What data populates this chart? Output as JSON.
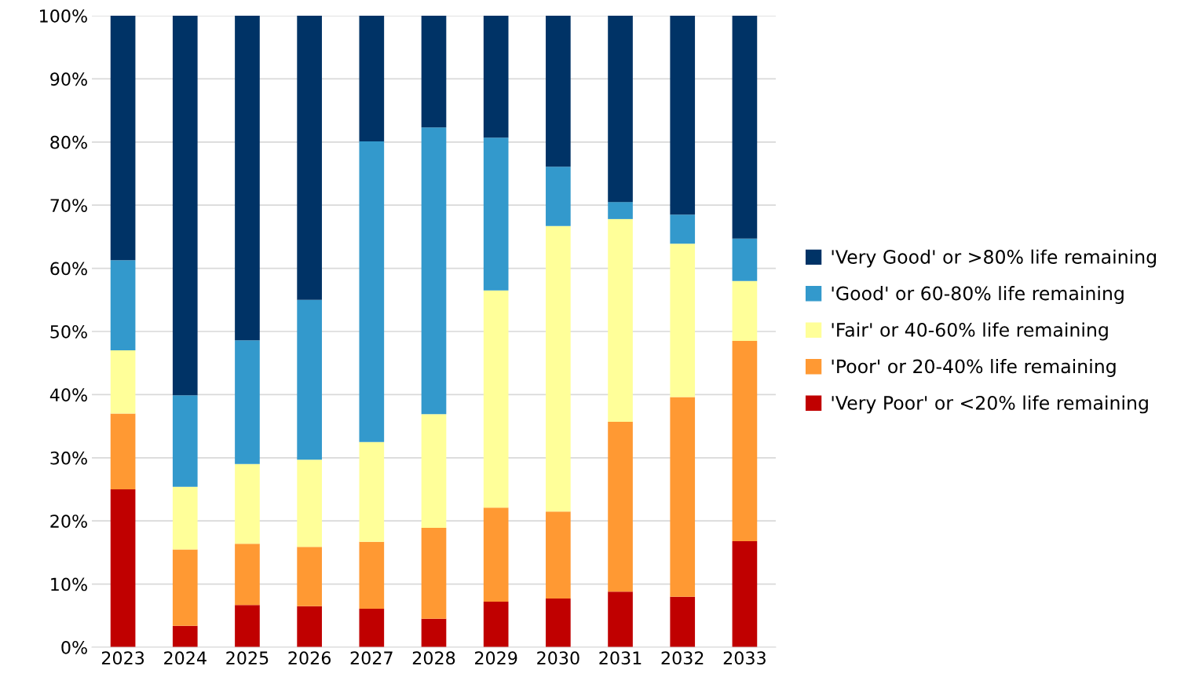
{
  "chart_data": {
    "type": "bar",
    "stacked": true,
    "categories": [
      "2023",
      "2024",
      "2025",
      "2026",
      "2027",
      "2028",
      "2029",
      "2030",
      "2031",
      "2032",
      "2033"
    ],
    "series": [
      {
        "name": "'Very Poor' or <20% life remaining",
        "color": "#c00000",
        "values": [
          25,
          3.4,
          6.7,
          6.5,
          6.1,
          4.5,
          7.2,
          7.7,
          8.8,
          8.0,
          16.8
        ]
      },
      {
        "name": "'Poor' or 20-40% life remaining",
        "color": "#ff9933",
        "values": [
          12,
          12.1,
          9.7,
          9.4,
          10.6,
          14.4,
          14.9,
          13.8,
          26.9,
          31.6,
          31.7
        ]
      },
      {
        "name": "'Fair' or 40-60% life remaining",
        "color": "#ffff99",
        "values": [
          10,
          9.9,
          12.6,
          13.8,
          15.8,
          18.0,
          34.4,
          45.2,
          32.1,
          24.3,
          9.5
        ]
      },
      {
        "name": "'Good' or 60-80% life remaining",
        "color": "#3399cc",
        "values": [
          14.3,
          14.5,
          19.6,
          25.3,
          47.6,
          45.4,
          24.2,
          9.4,
          2.7,
          4.6,
          6.7
        ]
      },
      {
        "name": "'Very Good' or >80% life remaining",
        "color": "#003366",
        "values": [
          38.7,
          60.1,
          51.4,
          45.0,
          19.9,
          17.7,
          19.3,
          23.9,
          29.5,
          31.5,
          35.3
        ]
      }
    ],
    "ylim": [
      0,
      100
    ],
    "yticks": [
      {
        "value": 0,
        "label": "0%"
      },
      {
        "value": 10,
        "label": "10%"
      },
      {
        "value": 20,
        "label": "20%"
      },
      {
        "value": 30,
        "label": "30%"
      },
      {
        "value": 40,
        "label": "40%"
      },
      {
        "value": 50,
        "label": "50%"
      },
      {
        "value": 60,
        "label": "60%"
      },
      {
        "value": 70,
        "label": "70%"
      },
      {
        "value": 80,
        "label": "80%"
      },
      {
        "value": 90,
        "label": "90%"
      },
      {
        "value": 100,
        "label": "100%"
      }
    ],
    "grid": "y",
    "legend": "right"
  }
}
